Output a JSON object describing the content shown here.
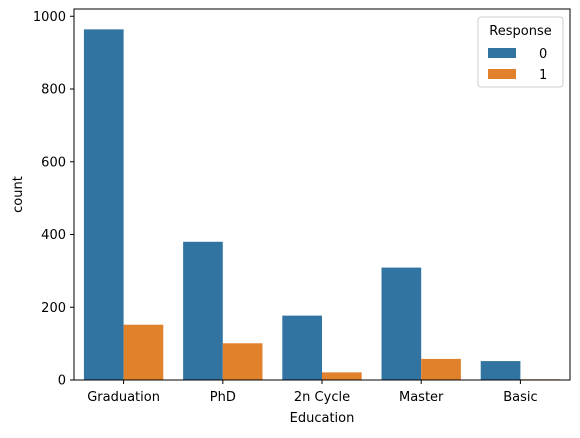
{
  "chart_data": {
    "type": "bar",
    "title": "",
    "xlabel": "Education",
    "ylabel": "count",
    "categories": [
      "Graduation",
      "PhD",
      "2n Cycle",
      "Master",
      "Basic"
    ],
    "series": [
      {
        "name": "0",
        "values": [
          964,
          380,
          177,
          309,
          52
        ],
        "color": "#3274a1"
      },
      {
        "name": "1",
        "values": [
          152,
          101,
          21,
          58,
          2
        ],
        "color": "#e1812c"
      }
    ],
    "ylim": [
      0,
      1000
    ],
    "yticks": [
      0,
      200,
      400,
      600,
      800,
      1000
    ],
    "grid": false,
    "legend": {
      "title": "Response",
      "placement": "top-right"
    }
  }
}
